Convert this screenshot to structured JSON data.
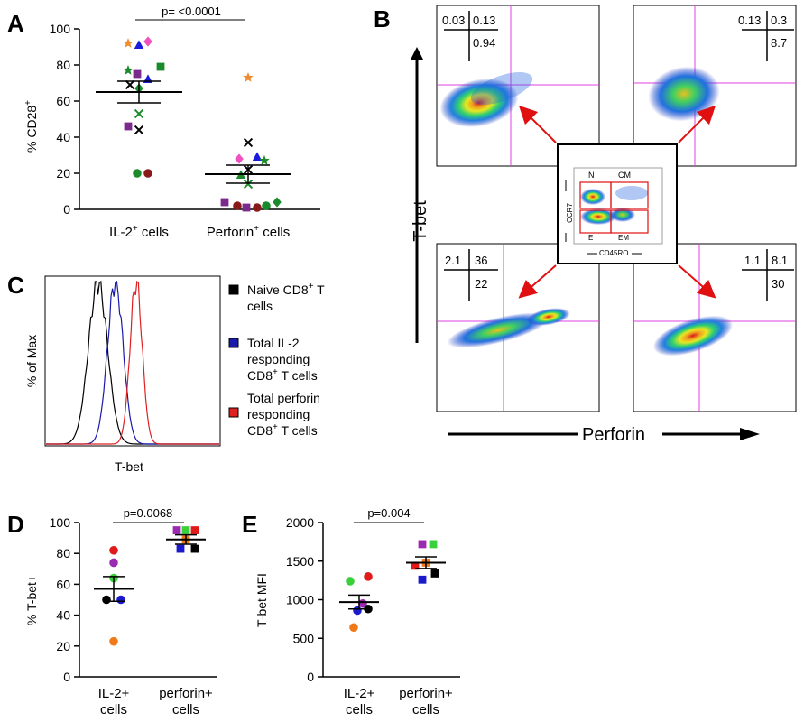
{
  "panels": {
    "A": {
      "letter": "A",
      "ylabel": "% CD28",
      "ylabel_sup": "+",
      "p_text": "p= <0.0001",
      "yticks": [
        "0",
        "20",
        "40",
        "60",
        "80",
        "100"
      ],
      "xlabels": [
        {
          "main": "IL-2",
          "sup": "+",
          "rest": " cells"
        },
        {
          "main": "Perforin",
          "sup": "+",
          "rest": " cells"
        }
      ]
    },
    "B": {
      "letter": "B",
      "ylabel": "T-bet",
      "xlabel": "Perforin",
      "quads": [
        {
          "tl": "0.03",
          "tr": "0.13",
          "br": "0.94"
        },
        {
          "tl": "0.13",
          "tr": "0.3",
          "br": "8.7"
        },
        {
          "tl": "2.1",
          "tr": "36",
          "br": "22"
        },
        {
          "tl": "1.1",
          "tr": "8.1",
          "br": "30"
        }
      ],
      "inset": {
        "n": "N",
        "cm": "CM",
        "e": "E",
        "em": "EM",
        "xlabel": "CD45RO",
        "ylabel": "CCR7"
      }
    },
    "C": {
      "letter": "C",
      "ylabel": "% of Max",
      "xlabel": "T-bet",
      "legend": [
        {
          "line1": "Naive CD8",
          "sup": "+",
          "line1b": " T",
          "line2": "cells",
          "line3": "",
          "color": "#000000"
        },
        {
          "line1": "Total IL-2",
          "sup": "",
          "line1b": "",
          "line2": "responding",
          "line3": "CD8",
          "sup3": "+",
          "line3b": " T cells",
          "color": "#1a1aaa"
        },
        {
          "line1": "Total perforin",
          "sup": "",
          "line1b": "",
          "line2": "responding",
          "line3": "CD8",
          "sup3": "+",
          "line3b": " T cells",
          "color": "#e02020"
        }
      ]
    },
    "D": {
      "letter": "D",
      "ylabel": "% T-bet+",
      "p_text": "p=0.0068",
      "yticks": [
        "0",
        "20",
        "40",
        "60",
        "80",
        "100"
      ],
      "xlabels": [
        [
          "IL-2+",
          "cells"
        ],
        [
          "perforin+",
          "cells"
        ]
      ]
    },
    "E": {
      "letter": "E",
      "ylabel": "T-bet MFI",
      "p_text": "p=0.004",
      "yticks": [
        "0",
        "500",
        "1000",
        "1500",
        "2000"
      ],
      "xlabels": [
        [
          "IL-2+",
          "cells"
        ],
        [
          "perforin+",
          "cells"
        ]
      ]
    }
  },
  "chart_data": [
    {
      "panel": "A",
      "type": "scatter",
      "ylabel": "% CD28+",
      "ylim": [
        0,
        100
      ],
      "categories": [
        "IL-2+ cells",
        "Perforin+ cells"
      ],
      "means": [
        65,
        19.5
      ],
      "sem": [
        6,
        5
      ],
      "points": [
        [
          {
            "y": 92,
            "shape": "star",
            "color": "#f08c30",
            "dx": -12
          },
          {
            "y": 91,
            "shape": "triangle",
            "color": "#1a1adc",
            "dx": 0
          },
          {
            "y": 93,
            "shape": "diamond",
            "color": "#f050c0",
            "dx": 10
          },
          {
            "y": 79,
            "shape": "square",
            "color": "#1a8a2a",
            "dx": 24
          },
          {
            "y": 77,
            "shape": "star",
            "color": "#1a8a2a",
            "dx": -12
          },
          {
            "y": 75,
            "shape": "square",
            "color": "#7a2a8a",
            "dx": -2
          },
          {
            "y": 72,
            "shape": "triangle",
            "color": "#1a1adc",
            "dx": 10
          },
          {
            "y": 69,
            "shape": "x",
            "color": "#000000",
            "dx": -10
          },
          {
            "y": 67,
            "shape": "diamond",
            "color": "#1a8a2a",
            "dx": 0
          },
          {
            "y": 53,
            "shape": "x",
            "color": "#1a8a2a",
            "dx": 0
          },
          {
            "y": 46,
            "shape": "square",
            "color": "#7a2a8a",
            "dx": -12
          },
          {
            "y": 44,
            "shape": "x",
            "color": "#000000",
            "dx": 0
          },
          {
            "y": 20,
            "shape": "circle",
            "color": "#1a8a2a",
            "dx": -2
          },
          {
            "y": 20,
            "shape": "circle",
            "color": "#8a1a1a",
            "dx": 10
          }
        ],
        [
          {
            "y": 73,
            "shape": "star",
            "color": "#f08c30",
            "dx": 0
          },
          {
            "y": 37,
            "shape": "x",
            "color": "#000000",
            "dx": 0
          },
          {
            "y": 29,
            "shape": "triangle",
            "color": "#1a1adc",
            "dx": 10
          },
          {
            "y": 28,
            "shape": "diamond",
            "color": "#f050c0",
            "dx": -10
          },
          {
            "y": 27,
            "shape": "star",
            "color": "#1a8a2a",
            "dx": 18
          },
          {
            "y": 22,
            "shape": "x",
            "color": "#000000",
            "dx": 0
          },
          {
            "y": 19,
            "shape": "triangle",
            "color": "#1a8a2a",
            "dx": -8
          },
          {
            "y": 14,
            "shape": "x",
            "color": "#1a8a2a",
            "dx": 0
          },
          {
            "y": 4,
            "shape": "square",
            "color": "#7a2a8a",
            "dx": -26
          },
          {
            "y": 2,
            "shape": "circle",
            "color": "#8a1a1a",
            "dx": -12
          },
          {
            "y": 1,
            "shape": "square",
            "color": "#7a2a8a",
            "dx": -2
          },
          {
            "y": 1,
            "shape": "circle",
            "color": "#8a1a1a",
            "dx": 10
          },
          {
            "y": 2,
            "shape": "circle",
            "color": "#1a8a2a",
            "dx": 20
          },
          {
            "y": 4,
            "shape": "diamond",
            "color": "#1a8a2a",
            "dx": 32
          }
        ]
      ]
    },
    {
      "panel": "C",
      "type": "line",
      "xlabel": "T-bet",
      "ylabel": "% of Max",
      "series": [
        {
          "name": "Naive CD8+ T cells",
          "color": "#000000",
          "peak": 0.3,
          "width": 0.055
        },
        {
          "name": "Total IL-2 responding CD8+ T cells",
          "color": "#1a1aaa",
          "peak": 0.4,
          "width": 0.045
        },
        {
          "name": "Total perforin responding CD8+ T cells",
          "color": "#e02020",
          "peak": 0.52,
          "width": 0.035
        }
      ]
    },
    {
      "panel": "D",
      "type": "scatter",
      "ylabel": "% T-bet+",
      "ylim": [
        0,
        100
      ],
      "categories": [
        "IL-2+ cells",
        "perforin+ cells"
      ],
      "means": [
        57,
        89
      ],
      "sem": [
        8,
        3
      ],
      "points": [
        [
          {
            "y": 82,
            "shape": "circle",
            "color": "#e01a1a",
            "dx": 0
          },
          {
            "y": 74,
            "shape": "circle",
            "color": "#9a2ab0",
            "dx": 0
          },
          {
            "y": 64,
            "shape": "circle",
            "color": "#3ad03a",
            "dx": 0
          },
          {
            "y": 50,
            "shape": "circle",
            "color": "#1a1acc",
            "dx": 8
          },
          {
            "y": 50,
            "shape": "circle",
            "color": "#000000",
            "dx": -8
          },
          {
            "y": 23,
            "shape": "circle",
            "color": "#f07a1a",
            "dx": 0
          }
        ],
        [
          {
            "y": 95,
            "shape": "square",
            "color": "#e01a1a",
            "dx": 10
          },
          {
            "y": 95,
            "shape": "square",
            "color": "#3ad03a",
            "dx": 0
          },
          {
            "y": 95,
            "shape": "square",
            "color": "#9a2ab0",
            "dx": -10
          },
          {
            "y": 89,
            "shape": "square",
            "color": "#f07a1a",
            "dx": 0
          },
          {
            "y": 83,
            "shape": "square",
            "color": "#000000",
            "dx": 10
          },
          {
            "y": 83,
            "shape": "square",
            "color": "#1a1acc",
            "dx": -6
          }
        ]
      ]
    },
    {
      "panel": "E",
      "type": "scatter",
      "ylabel": "T-bet MFI",
      "ylim": [
        0,
        2000
      ],
      "categories": [
        "IL-2+ cells",
        "perforin+ cells"
      ],
      "means": [
        970,
        1480
      ],
      "sem": [
        90,
        75
      ],
      "points": [
        [
          {
            "y": 1300,
            "shape": "circle",
            "color": "#e01a1a",
            "dx": 10
          },
          {
            "y": 1240,
            "shape": "circle",
            "color": "#3ad03a",
            "dx": -10
          },
          {
            "y": 950,
            "shape": "circle",
            "color": "#9a2ab0",
            "dx": 4
          },
          {
            "y": 860,
            "shape": "circle",
            "color": "#1a1acc",
            "dx": -2
          },
          {
            "y": 880,
            "shape": "circle",
            "color": "#000000",
            "dx": 10
          },
          {
            "y": 640,
            "shape": "circle",
            "color": "#f07a1a",
            "dx": -6
          }
        ],
        [
          {
            "y": 1720,
            "shape": "square",
            "color": "#9a2ab0",
            "dx": -4
          },
          {
            "y": 1720,
            "shape": "square",
            "color": "#3ad03a",
            "dx": 8
          },
          {
            "y": 1480,
            "shape": "square",
            "color": "#f07a1a",
            "dx": 0
          },
          {
            "y": 1440,
            "shape": "square",
            "color": "#e01a1a",
            "dx": -12
          },
          {
            "y": 1340,
            "shape": "square",
            "color": "#000000",
            "dx": 10
          },
          {
            "y": 1260,
            "shape": "square",
            "color": "#1a1acc",
            "dx": -4
          }
        ]
      ]
    }
  ]
}
